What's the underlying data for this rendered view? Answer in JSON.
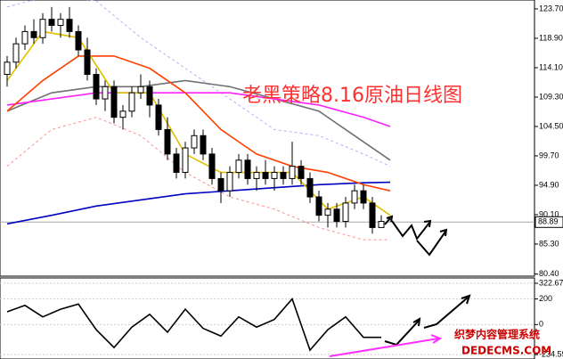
{
  "chart_data": {
    "type": "candlestick",
    "annotation": "老黑策略8.16原油日线图",
    "watermark": "织梦内容管理系统",
    "watermark_url": "DEDECMS.COM",
    "xlim": [
      -0.8,
      59.2
    ],
    "ylim": [
      80.06,
      125.15
    ],
    "yticks": [
      {
        "value": 123.7,
        "label": "123.70"
      },
      {
        "value": 118.9,
        "label": "118.90"
      },
      {
        "value": 114.1,
        "label": "114.10"
      },
      {
        "value": 109.3,
        "label": "109.30"
      },
      {
        "value": 104.5,
        "label": "104.50"
      },
      {
        "value": 99.7,
        "label": "99.70"
      },
      {
        "value": 94.9,
        "label": "94.90"
      },
      {
        "value": 90.1,
        "label": "90.10"
      },
      {
        "value": 85.3,
        "label": "85.30"
      },
      {
        "value": 80.4,
        "label": "80.40"
      }
    ],
    "last_price": 88.89,
    "candles": [
      {
        "open": 113,
        "high": 116,
        "low": 111,
        "close": 115
      },
      {
        "open": 115,
        "high": 119,
        "low": 114,
        "close": 118
      },
      {
        "open": 118,
        "high": 121,
        "low": 117,
        "close": 120
      },
      {
        "open": 120,
        "high": 122,
        "low": 118,
        "close": 119
      },
      {
        "open": 119,
        "high": 123,
        "low": 118,
        "close": 122
      },
      {
        "open": 122,
        "high": 124,
        "low": 120,
        "close": 121
      },
      {
        "open": 121,
        "high": 123,
        "low": 119,
        "close": 122
      },
      {
        "open": 122,
        "high": 124,
        "low": 119,
        "close": 120
      },
      {
        "open": 120,
        "high": 121,
        "low": 116,
        "close": 117
      },
      {
        "open": 117,
        "high": 119,
        "low": 112,
        "close": 113
      },
      {
        "open": 113,
        "high": 114,
        "low": 108,
        "close": 109
      },
      {
        "open": 109,
        "high": 112,
        "low": 107,
        "close": 111
      },
      {
        "open": 111,
        "high": 112,
        "low": 105,
        "close": 106
      },
      {
        "open": 106,
        "high": 108,
        "low": 104,
        "close": 107
      },
      {
        "open": 107,
        "high": 111,
        "low": 106,
        "close": 110
      },
      {
        "open": 110,
        "high": 113,
        "low": 109,
        "close": 111
      },
      {
        "open": 111,
        "high": 112,
        "low": 106,
        "close": 108
      },
      {
        "open": 108,
        "high": 109,
        "low": 103,
        "close": 104
      },
      {
        "open": 104,
        "high": 106,
        "low": 99,
        "close": 100
      },
      {
        "open": 100,
        "high": 101,
        "low": 96,
        "close": 97
      },
      {
        "open": 97,
        "high": 102,
        "low": 96,
        "close": 101
      },
      {
        "open": 101,
        "high": 104,
        "low": 100,
        "close": 103
      },
      {
        "open": 103,
        "high": 104,
        "low": 99,
        "close": 100
      },
      {
        "open": 100,
        "high": 101,
        "low": 95,
        "close": 96
      },
      {
        "open": 96,
        "high": 97,
        "low": 92,
        "close": 94
      },
      {
        "open": 94,
        "high": 98,
        "low": 93,
        "close": 97
      },
      {
        "open": 97,
        "high": 100,
        "low": 96,
        "close": 99
      },
      {
        "open": 99,
        "high": 100,
        "low": 95,
        "close": 96
      },
      {
        "open": 96,
        "high": 98,
        "low": 94,
        "close": 97
      },
      {
        "open": 97,
        "high": 99,
        "low": 95,
        "close": 96
      },
      {
        "open": 96,
        "high": 98,
        "low": 94,
        "close": 97
      },
      {
        "open": 97,
        "high": 98,
        "low": 95,
        "close": 96
      },
      {
        "open": 96,
        "high": 102,
        "low": 95,
        "close": 98
      },
      {
        "open": 98,
        "high": 99,
        "low": 95,
        "close": 96
      },
      {
        "open": 96,
        "high": 97,
        "low": 92,
        "close": 93
      },
      {
        "open": 93,
        "high": 94,
        "low": 89,
        "close": 90
      },
      {
        "open": 90,
        "high": 92,
        "low": 88,
        "close": 91
      },
      {
        "open": 91,
        "high": 92,
        "low": 88,
        "close": 89
      },
      {
        "open": 89,
        "high": 93,
        "low": 88,
        "close": 92
      },
      {
        "open": 92,
        "high": 95,
        "low": 91,
        "close": 94
      },
      {
        "open": 94,
        "high": 95,
        "low": 91,
        "close": 92
      },
      {
        "open": 92,
        "high": 93,
        "low": 87,
        "close": 88
      },
      {
        "open": 88,
        "high": 90,
        "low": 88,
        "close": 89
      }
    ],
    "lines": [
      {
        "color": "#b0b0ff",
        "dash": true,
        "x": [
          0,
          5,
          10,
          15,
          20,
          25,
          30,
          35,
          40,
          43
        ],
        "values": [
          124,
          126,
          125,
          119,
          114,
          109,
          104,
          103,
          100,
          98
        ]
      },
      {
        "color": "#ff9090",
        "dash": true,
        "x": [
          0,
          5,
          10,
          15,
          20,
          25,
          30,
          35,
          40,
          43
        ],
        "values": [
          98,
          104,
          106,
          103,
          97,
          93,
          91,
          88,
          86,
          86
        ]
      },
      {
        "color": "#707070",
        "dash": false,
        "x": [
          0,
          5,
          10,
          15,
          20,
          25,
          30,
          35,
          40,
          43
        ],
        "values": [
          107,
          110,
          111,
          111,
          112,
          111,
          109,
          107,
          102,
          99
        ]
      },
      {
        "color": "#ff20ff",
        "dash": false,
        "x": [
          0,
          5,
          10,
          15,
          20,
          25,
          30,
          35,
          40,
          43
        ],
        "values": [
          108,
          109,
          110,
          110,
          110,
          110,
          109,
          108,
          106,
          104.5
        ]
      },
      {
        "color": "#0000c0",
        "dash": false,
        "x": [
          0,
          5,
          10,
          15,
          20,
          25,
          30,
          35,
          40,
          43
        ],
        "values": [
          88.6,
          90,
          91.5,
          92.5,
          93.5,
          94,
          94.5,
          95,
          95.3,
          95.4
        ]
      },
      {
        "color": "#ff4000",
        "dash": false,
        "x": [
          0,
          4,
          8,
          12,
          16,
          20,
          24,
          28,
          32,
          36,
          40,
          43
        ],
        "values": [
          107,
          112,
          116,
          116,
          114,
          110,
          104,
          100,
          98,
          97,
          95,
          94
        ]
      },
      {
        "color": "#e0c000",
        "dash": false,
        "x": [
          0,
          4,
          8,
          12,
          16,
          20,
          24,
          28,
          32,
          36,
          40,
          43
        ],
        "values": [
          112,
          120,
          119,
          110,
          110,
          100,
          97,
          97,
          97,
          91,
          93,
          90
        ]
      }
    ],
    "cci": {
      "color": "#000000",
      "ylim": [
        -269.4,
        364.5
      ],
      "yticks": [
        {
          "value": 322.67,
          "label": "322.67"
        },
        200,
        0,
        {
          "value": -234.59,
          "label": "-234.59"
        }
      ],
      "x": [
        0,
        2,
        4,
        6,
        8,
        10,
        12,
        14,
        16,
        18,
        20,
        22,
        24,
        26,
        28,
        30,
        32,
        34,
        36,
        38,
        40,
        42
      ],
      "values": [
        100,
        150,
        60,
        120,
        160,
        -40,
        -180,
        -20,
        80,
        -60,
        120,
        -30,
        -90,
        60,
        -20,
        40,
        200,
        -200,
        -40,
        60,
        -100,
        -100
      ]
    }
  }
}
